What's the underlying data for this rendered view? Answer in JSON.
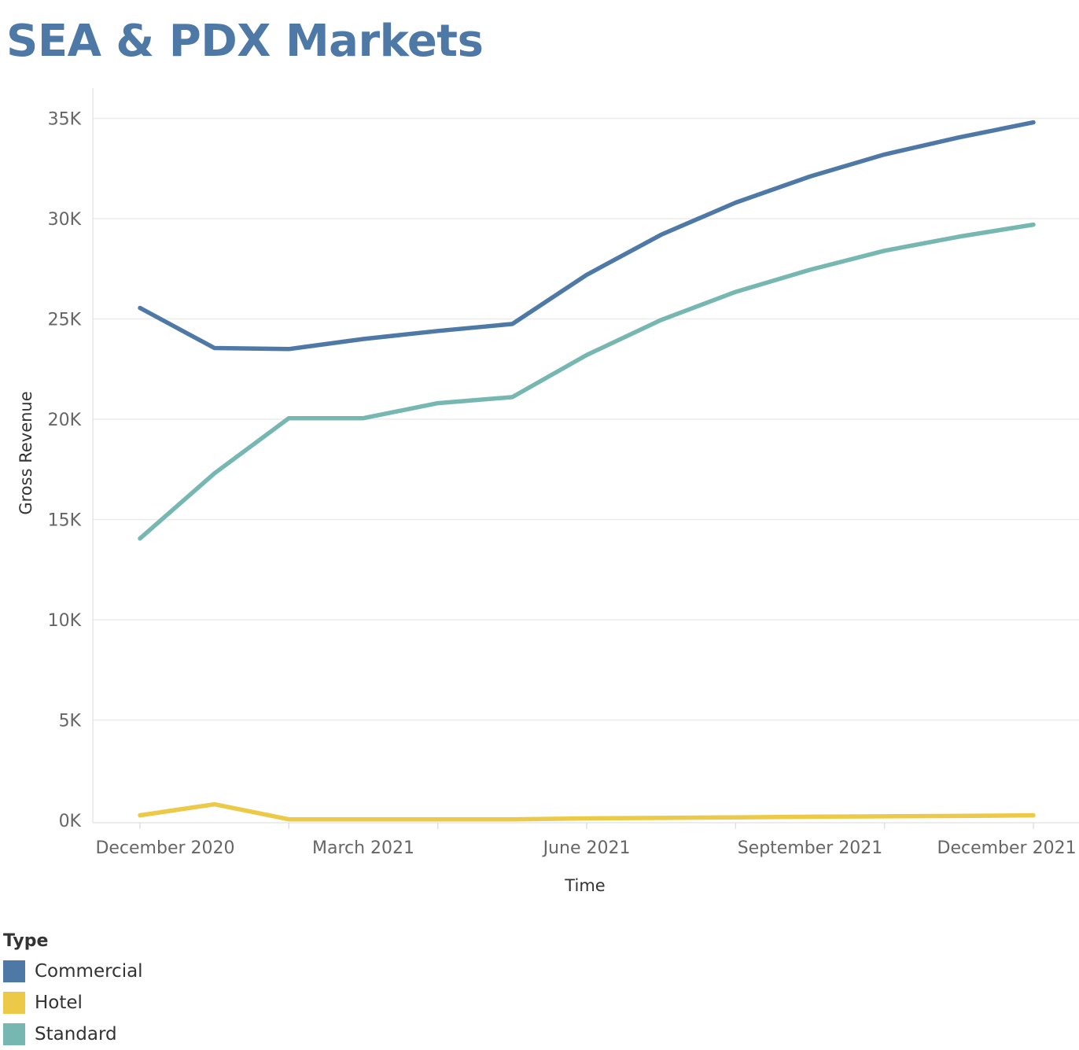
{
  "chart_data": {
    "type": "line",
    "title": "SEA & PDX Markets",
    "xlabel": "Time",
    "ylabel": "Gross Revenue",
    "x": [
      "2020-12",
      "2021-01",
      "2021-02",
      "2021-03",
      "2021-04",
      "2021-05",
      "2021-06",
      "2021-07",
      "2021-08",
      "2021-09",
      "2021-10",
      "2021-11",
      "2021-12"
    ],
    "x_tick_labels": [
      "December 2020",
      "March 2021",
      "June 2021",
      "September 2021",
      "December 2021"
    ],
    "y_tick_labels": [
      "0K",
      "5K",
      "10K",
      "15K",
      "20K",
      "25K",
      "30K",
      "35K"
    ],
    "ylim": [
      -500,
      36500
    ],
    "grid": true,
    "legend_position": "bottom-left",
    "legend_title": "Type",
    "series": [
      {
        "name": "Commercial",
        "color": "#4e79a7",
        "values": [
          25550,
          23550,
          23500,
          24000,
          24400,
          24750,
          27200,
          29200,
          30800,
          32100,
          33200,
          34050,
          34800
        ]
      },
      {
        "name": "Hotel",
        "color": "#edc948",
        "values": [
          250,
          800,
          50,
          50,
          50,
          50,
          100,
          120,
          150,
          180,
          200,
          220,
          250
        ]
      },
      {
        "name": "Standard",
        "color": "#76b7b2",
        "values": [
          14050,
          17300,
          20050,
          20050,
          20800,
          21100,
          23200,
          24950,
          26350,
          27450,
          28400,
          29100,
          29700
        ]
      }
    ]
  }
}
